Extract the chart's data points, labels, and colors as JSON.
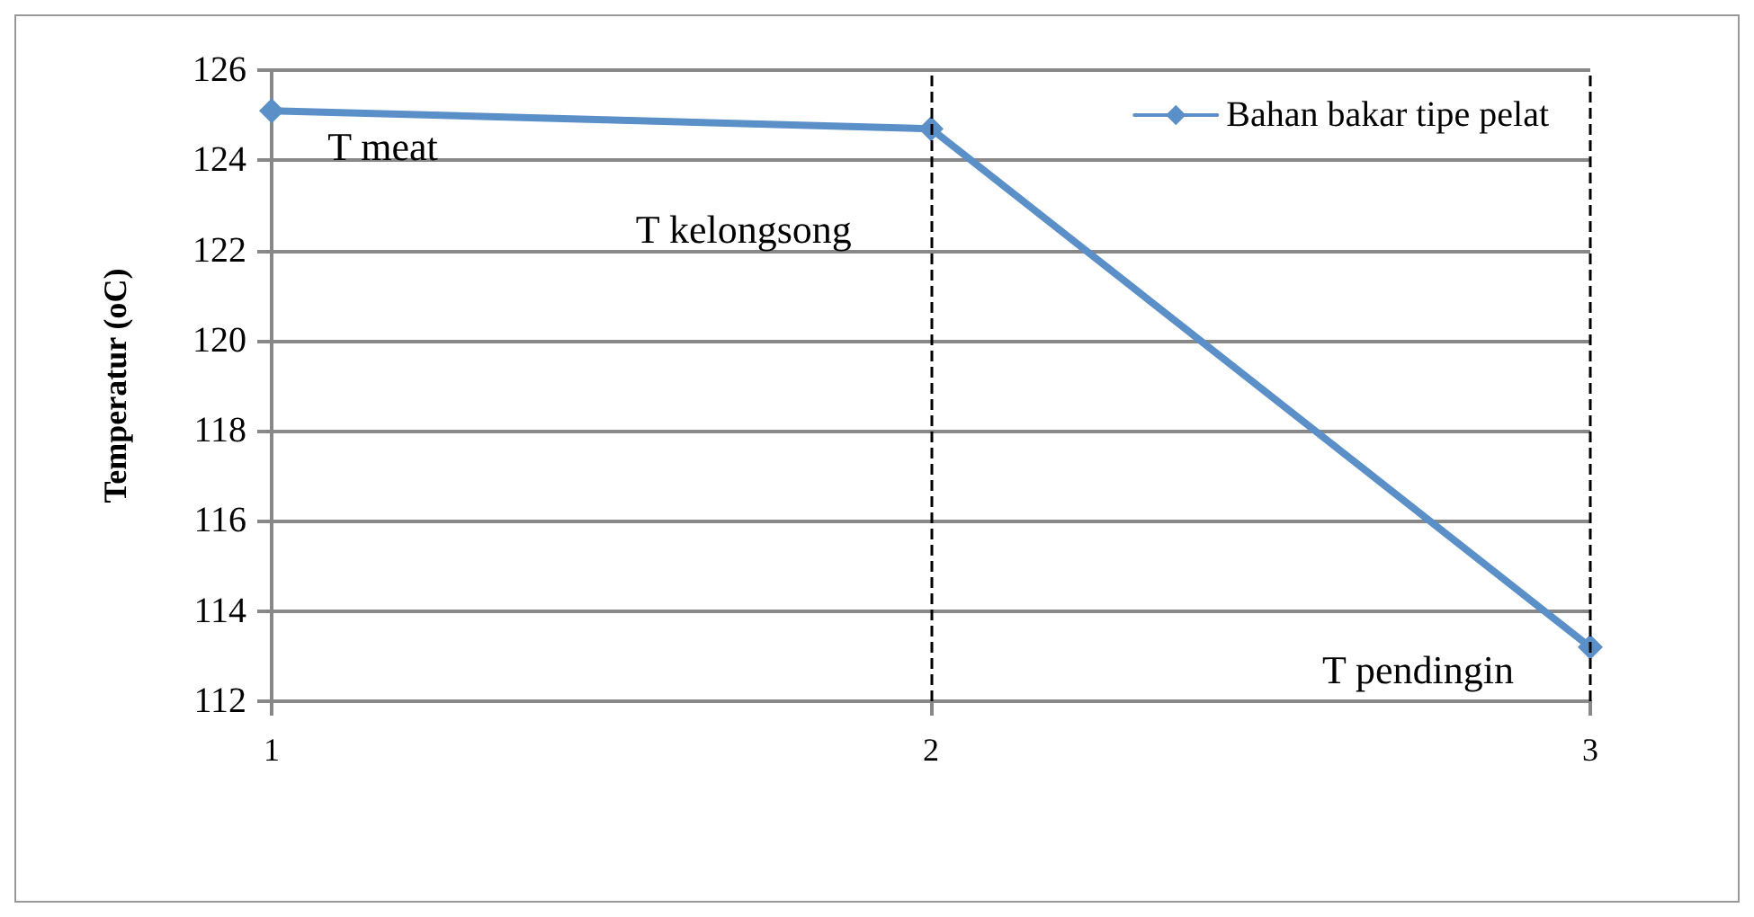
{
  "chart_data": {
    "type": "line",
    "ylabel": "Temperatur (oC)",
    "x": [
      1,
      2,
      3
    ],
    "series": [
      {
        "name": "Bahan bakar tipe pelat",
        "color": "#5b8fc8",
        "values": [
          125.1,
          124.7,
          113.2
        ]
      }
    ],
    "xlim": [
      1,
      3
    ],
    "xticks": [
      1,
      2,
      3
    ],
    "ylim": [
      112,
      126
    ],
    "yticks": [
      112,
      114,
      116,
      118,
      120,
      122,
      124,
      126
    ],
    "grid": "y",
    "legend": "top right",
    "marker": "diamond",
    "line_style": "solid",
    "ref_lines": [
      {
        "axis": "x",
        "value": 2,
        "color": "#000000",
        "line_style": "dashed"
      },
      {
        "axis": "x",
        "value": 3,
        "color": "#000000",
        "line_style": "dashed"
      }
    ],
    "annotations": [
      "T meat",
      "T kelongsong",
      "T pendingin"
    ]
  }
}
